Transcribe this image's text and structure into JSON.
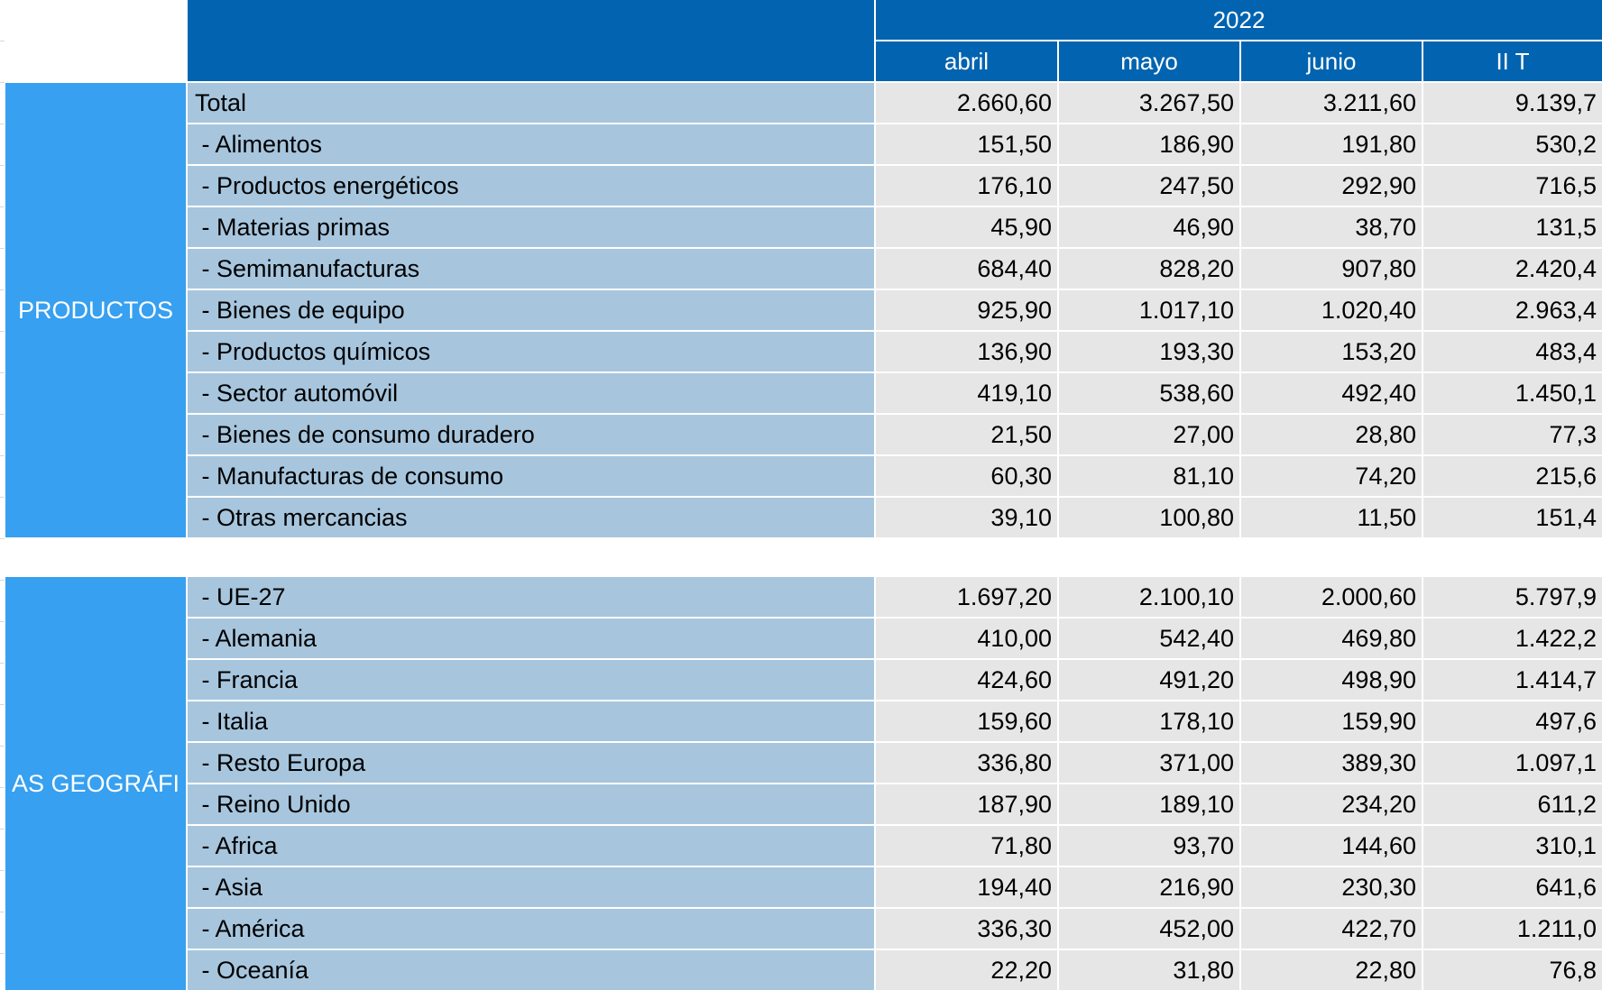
{
  "header": {
    "year": "2022",
    "columns": [
      "abril",
      "mayo",
      "junio",
      "II T"
    ]
  },
  "sections": [
    {
      "label": "PRODUCTOS",
      "rows": [
        {
          "label": "Total",
          "values": [
            "2.660,60",
            "3.267,50",
            "3.211,60",
            "9.139,7"
          ]
        },
        {
          "label": " - Alimentos",
          "values": [
            "151,50",
            "186,90",
            "191,80",
            "530,2"
          ]
        },
        {
          "label": " - Productos energéticos",
          "values": [
            "176,10",
            "247,50",
            "292,90",
            "716,5"
          ]
        },
        {
          "label": " - Materias primas",
          "values": [
            "45,90",
            "46,90",
            "38,70",
            "131,5"
          ]
        },
        {
          "label": " - Semimanufacturas",
          "values": [
            "684,40",
            "828,20",
            "907,80",
            "2.420,4"
          ]
        },
        {
          "label": " - Bienes de equipo",
          "values": [
            "925,90",
            "1.017,10",
            "1.020,40",
            "2.963,4"
          ]
        },
        {
          "label": " - Productos químicos",
          "values": [
            "136,90",
            "193,30",
            "153,20",
            "483,4"
          ]
        },
        {
          "label": " - Sector automóvil",
          "values": [
            "419,10",
            "538,60",
            "492,40",
            "1.450,1"
          ]
        },
        {
          "label": " - Bienes de consumo duradero",
          "values": [
            "21,50",
            "27,00",
            "28,80",
            "77,3"
          ]
        },
        {
          "label": " - Manufacturas de consumo",
          "values": [
            "60,30",
            "81,10",
            "74,20",
            "215,6"
          ]
        },
        {
          "label": " - Otras mercancias",
          "values": [
            "39,10",
            "100,80",
            "11,50",
            "151,4"
          ]
        }
      ]
    },
    {
      "label": "AS  GEOGRÁFI",
      "rows": [
        {
          "label": " - UE-27",
          "values": [
            "1.697,20",
            "2.100,10",
            "2.000,60",
            "5.797,9"
          ]
        },
        {
          "label": " - Alemania",
          "values": [
            "410,00",
            "542,40",
            "469,80",
            "1.422,2"
          ]
        },
        {
          "label": " - Francia",
          "values": [
            "424,60",
            "491,20",
            "498,90",
            "1.414,7"
          ]
        },
        {
          "label": " - Italia",
          "values": [
            "159,60",
            "178,10",
            "159,90",
            "497,6"
          ]
        },
        {
          "label": " - Resto Europa",
          "values": [
            "336,80",
            "371,00",
            "389,30",
            "1.097,1"
          ]
        },
        {
          "label": " - Reino Unido",
          "values": [
            "187,90",
            "189,10",
            "234,20",
            "611,2"
          ]
        },
        {
          "label": " - Africa",
          "values": [
            "71,80",
            "93,70",
            "144,60",
            "310,1"
          ]
        },
        {
          "label": " - Asia",
          "values": [
            "194,40",
            "216,90",
            "230,30",
            "641,6"
          ]
        },
        {
          "label": " - América",
          "values": [
            "336,30",
            "452,00",
            "422,70",
            "1.211,0"
          ]
        },
        {
          "label": " - Oceanía",
          "values": [
            "22,20",
            "31,80",
            "22,80",
            "76,8"
          ]
        }
      ]
    }
  ]
}
